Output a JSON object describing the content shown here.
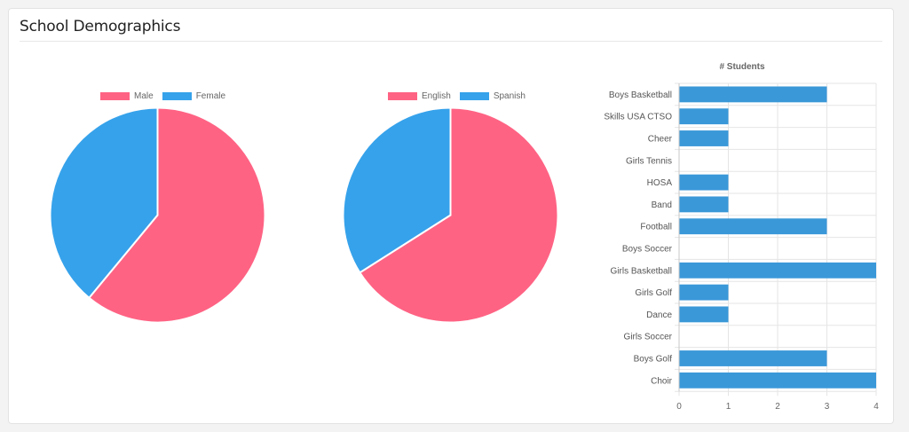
{
  "card": {
    "title": "School Demographics"
  },
  "colors": {
    "pink": "#ff6384",
    "blue": "#36a2eb",
    "bar": "#3a98d8"
  },
  "chart_data": [
    {
      "type": "pie",
      "labels": [
        "Male",
        "Female"
      ],
      "values": [
        61,
        39
      ],
      "colors": [
        "#ff6384",
        "#36a2eb"
      ],
      "legend": "top"
    },
    {
      "type": "pie",
      "labels": [
        "English",
        "Spanish"
      ],
      "values": [
        66,
        34
      ],
      "colors": [
        "#ff6384",
        "#36a2eb"
      ],
      "legend": "top"
    },
    {
      "type": "bar",
      "orientation": "horizontal",
      "title": "# Students",
      "categories": [
        "Boys Basketball",
        "Skills USA CTSO",
        "Cheer",
        "Girls Tennis",
        "HOSA",
        "Band",
        "Football",
        "Boys Soccer",
        "Girls Basketball",
        "Girls Golf",
        "Dance",
        "Girls Soccer",
        "Boys Golf",
        "Choir"
      ],
      "values": [
        3,
        1,
        1,
        0,
        1,
        1,
        3,
        0,
        4,
        1,
        1,
        0,
        3,
        4
      ],
      "xlim": [
        0,
        4
      ],
      "xticks": [
        "0",
        "1",
        "2",
        "3",
        "4"
      ],
      "grid": true
    }
  ]
}
